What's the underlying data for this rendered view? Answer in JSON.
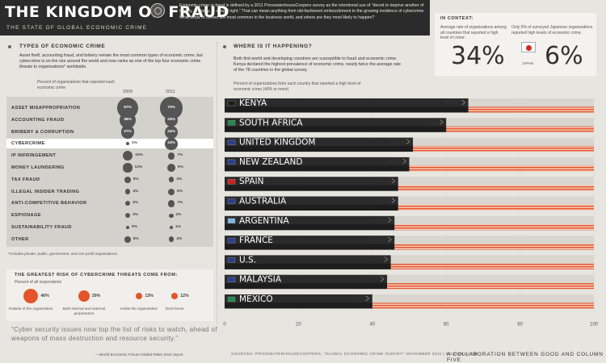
{
  "header": {
    "title": "THE KINGDOM OF FRAUD",
    "subtitle": "THE STATE OF GLOBAL ECONOMIC CRIME",
    "intro": "Economic crime or fraud is defined by a 2011 PricewaterhouseCoopers survey as the intentional use of \"deceit to deprive another of money, property, or a legal right.\" That can mean anything from old-fashioned embezzlement to the growing incidence of cybercrime. What kinds of crimes are most common in the business world, and where are they most likely to happen?"
  },
  "context": {
    "label": "IN CONTEXT:",
    "avg_text": "Average rate of organizations among all countries that reported a high level of crime:",
    "avg_value": "34%",
    "japan_text": "Only 6% of surveyed Japanese organizations reported high levels of economic crime.",
    "japan_label": "JAPAN",
    "japan_value": "6%",
    "japan_flag_colors": {
      "field": "#ffffff",
      "disc": "#cc2a1c"
    }
  },
  "types": {
    "heading": "TYPES OF ECONOMIC CRIME",
    "text": "Asset theft, accounting fraud, and bribery remain the most common types of economic crime, but cybercrime is on the rise around the world and now ranks as one of the top four economic crime threats to organizations* worldwide.",
    "col_label": "Percent of organizations that reported each economic crime",
    "year_2009": "2009",
    "year_2011": "2011",
    "footnote": "*Includes private, public, government, and non-profit organizations.",
    "highlight_row": "CYBERCRIME",
    "rows": [
      {
        "label": "ASSET MISAPPROPRIATION",
        "v2009": 67,
        "v2011": 72,
        "t2009": "67%",
        "t2011": "72%"
      },
      {
        "label": "ACCOUNTING FRAUD",
        "v2009": 38,
        "v2011": 24,
        "t2009": "38%",
        "t2011": "24%"
      },
      {
        "label": "BRIBERY & CORRUPTION",
        "v2009": 27,
        "v2011": 24,
        "t2009": "27%",
        "t2011": "24%"
      },
      {
        "label": "CYBERCRIME",
        "v2009": 1,
        "v2011": 23,
        "t2009": "1%",
        "t2011": "23%"
      },
      {
        "label": "IP INFRINGEMENT",
        "v2009": 15,
        "v2011": 7,
        "t2009": "15%",
        "t2011": "7%"
      },
      {
        "label": "MONEY LAUNDERING",
        "v2009": 12,
        "v2011": 9,
        "t2009": "12%",
        "t2011": "9%"
      },
      {
        "label": "TAX FRAUD",
        "v2009": 5,
        "v2011": 4,
        "t2009": "5%",
        "t2011": "4%"
      },
      {
        "label": "ILLEGAL INSIDER TRADING",
        "v2009": 4,
        "v2011": 6,
        "t2009": "4%",
        "t2011": "6%"
      },
      {
        "label": "ANTI-COMPETITIVE BEHAVIOR",
        "v2009": 3,
        "v2011": 7,
        "t2009": "3%",
        "t2011": "7%"
      },
      {
        "label": "ESPIONAGE",
        "v2009": 3,
        "v2011": 2,
        "t2009": "3%",
        "t2011": "2%"
      },
      {
        "label": "SUSTAINABILITY FRAUD",
        "v2009": 0,
        "v2011": 1,
        "t2009": "0%",
        "t2011": "1%"
      },
      {
        "label": "OTHER",
        "v2009": 5,
        "v2011": 4,
        "t2009": "5%",
        "t2011": "4%"
      }
    ]
  },
  "cyber": {
    "heading": "THE GREATEST RISK OF CYBERCRIME THREATS COME FROM:",
    "sub": "Percent of all respondents",
    "items": [
      {
        "value": 46,
        "text": "46%",
        "label": "Outside of the organization"
      },
      {
        "value": 29,
        "text": "29%",
        "label": "Both internal and external perpetrators"
      },
      {
        "value": 13,
        "text": "13%",
        "label": "Inside the organization"
      },
      {
        "value": 12,
        "text": "12%",
        "label": "Don't know"
      }
    ]
  },
  "where": {
    "heading": "WHERE IS IT HAPPENING?",
    "text": "Both first-world and developing countries are susceptible to fraud and economic crime. Kenya declared the highest prevalence of economic crime, nearly twice the average rate of the 78 countries in the global survey.",
    "col_label": "Percent of organizations from each country that reported a high level of economic crime (40% or more)"
  },
  "quote": {
    "text": "“Cyber security issues now top the list of risks to watch, ahead of weapons of mass destruction and resource security.”",
    "source": "—World Economic Forum Global Risks 2011 report"
  },
  "footer": {
    "sources": "SOURCES: PRICEWATERHOUSECOOPERS, \"GLOBAL ECONOMIC CRIME SURVEY\" NOVEMBER 2011 | REUTERS.COM",
    "collab": "A COLLABORATION BETWEEN GOOD AND COLUMN FIVE"
  },
  "colors": {
    "accent": "#e4542a",
    "dark": "#2b2b2b",
    "bar_track": "#d8d6cf",
    "highlight": "#ffffff"
  },
  "chart_data": {
    "type": "bar",
    "orientation": "horizontal",
    "categories": [
      "KENYA",
      "SOUTH AFRICA",
      "UNITED KINGDOM",
      "NEW ZEALAND",
      "SPAIN",
      "AUSTRALIA",
      "ARGENTINA",
      "FRANCE",
      "U.S.",
      "MALAYSIA",
      "MEXICO"
    ],
    "values": [
      66,
      60,
      51,
      50,
      47,
      47,
      46,
      46,
      45,
      44,
      40
    ],
    "labels": [
      "66%",
      "60%",
      "51%",
      "50%",
      "47%",
      "47%",
      "46%",
      "46%",
      "45%",
      "44%",
      "40%"
    ],
    "xlim": [
      0,
      100
    ],
    "xticks": [
      "0",
      "20",
      "40",
      "60",
      "80",
      "100"
    ],
    "flags": [
      "kenya-flag",
      "south-africa-flag",
      "uk-flag",
      "new-zealand-flag",
      "spain-flag",
      "australia-flag",
      "argentina-flag",
      "france-flag",
      "us-flag",
      "malaysia-flag",
      "mexico-flag"
    ]
  }
}
